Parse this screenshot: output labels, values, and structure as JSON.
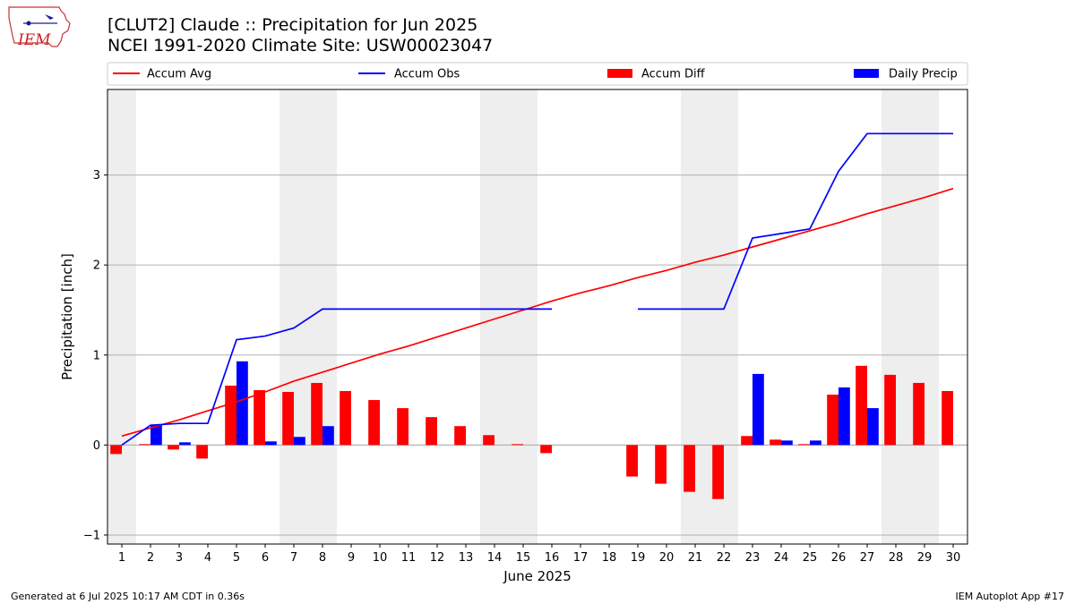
{
  "header": {
    "title": "[CLUT2] Claude :: Precipitation for Jun 2025",
    "subtitle": "NCEI 1991-2020 Climate Site: USW00023047",
    "logo_text": "IEM"
  },
  "footer": {
    "left": "Generated at 6 Jul 2025 10:17 AM CDT in 0.36s",
    "right": "IEM Autoplot App #17"
  },
  "colors": {
    "avg": "#ff0000",
    "obs": "#0000ff",
    "diff": "#ff0000",
    "daily": "#0000ff",
    "weekend_band": "#eeeeee",
    "grid": "#b0b0b0"
  },
  "chart_data": {
    "type": "bar",
    "xlabel": "June 2025",
    "ylabel": "Precipitation [inch]",
    "ylim": [
      -1.1,
      3.95
    ],
    "yticks": [
      -1,
      0,
      1,
      2,
      3
    ],
    "x": [
      1,
      2,
      3,
      4,
      5,
      6,
      7,
      8,
      9,
      10,
      11,
      12,
      13,
      14,
      15,
      16,
      17,
      18,
      19,
      20,
      21,
      22,
      23,
      24,
      25,
      26,
      27,
      28,
      29,
      30
    ],
    "weekend_bands": [
      [
        1,
        1
      ],
      [
        7,
        8
      ],
      [
        14,
        15
      ],
      [
        21,
        22
      ],
      [
        28,
        29
      ]
    ],
    "legend": {
      "placement": "top",
      "entries": [
        "Accum Avg",
        "Accum Obs",
        "Accum Diff",
        "Daily Precip"
      ]
    },
    "grid": "y",
    "series": [
      {
        "name": "Accum Avg",
        "type": "line",
        "values": [
          0.1,
          0.19,
          0.28,
          0.38,
          0.48,
          0.59,
          0.71,
          0.81,
          0.91,
          1.01,
          1.1,
          1.2,
          1.3,
          1.4,
          1.5,
          1.6,
          1.69,
          1.77,
          1.86,
          1.94,
          2.03,
          2.11,
          2.2,
          2.29,
          2.38,
          2.47,
          2.57,
          2.66,
          2.75,
          2.85
        ]
      },
      {
        "name": "Accum Obs",
        "type": "line",
        "values": [
          0.0,
          0.22,
          0.24,
          0.24,
          1.17,
          1.21,
          1.3,
          1.51,
          1.51,
          1.51,
          1.51,
          1.51,
          1.51,
          1.51,
          1.51,
          1.51,
          null,
          null,
          1.51,
          1.51,
          1.51,
          1.51,
          2.3,
          2.35,
          2.4,
          3.04,
          3.46,
          3.46,
          3.46,
          3.46
        ]
      },
      {
        "name": "Accum Diff",
        "type": "bar",
        "values": [
          -0.1,
          0.01,
          -0.05,
          -0.15,
          0.66,
          0.61,
          0.59,
          0.69,
          0.6,
          0.5,
          0.41,
          0.31,
          0.21,
          0.11,
          0.01,
          -0.09,
          null,
          null,
          -0.35,
          -0.43,
          -0.52,
          -0.6,
          0.1,
          0.06,
          0.01,
          0.56,
          0.88,
          0.78,
          0.69,
          0.6
        ]
      },
      {
        "name": "Daily Precip",
        "type": "bar",
        "values": [
          0.0,
          0.22,
          0.03,
          0.0,
          0.93,
          0.04,
          0.09,
          0.21,
          0.0,
          0.0,
          0.0,
          0.0,
          0.0,
          0.0,
          0.0,
          0.0,
          null,
          null,
          0.0,
          0.0,
          0.0,
          0.0,
          0.79,
          0.05,
          0.05,
          0.64,
          0.41,
          0.0,
          0.0,
          0.0
        ]
      }
    ]
  }
}
